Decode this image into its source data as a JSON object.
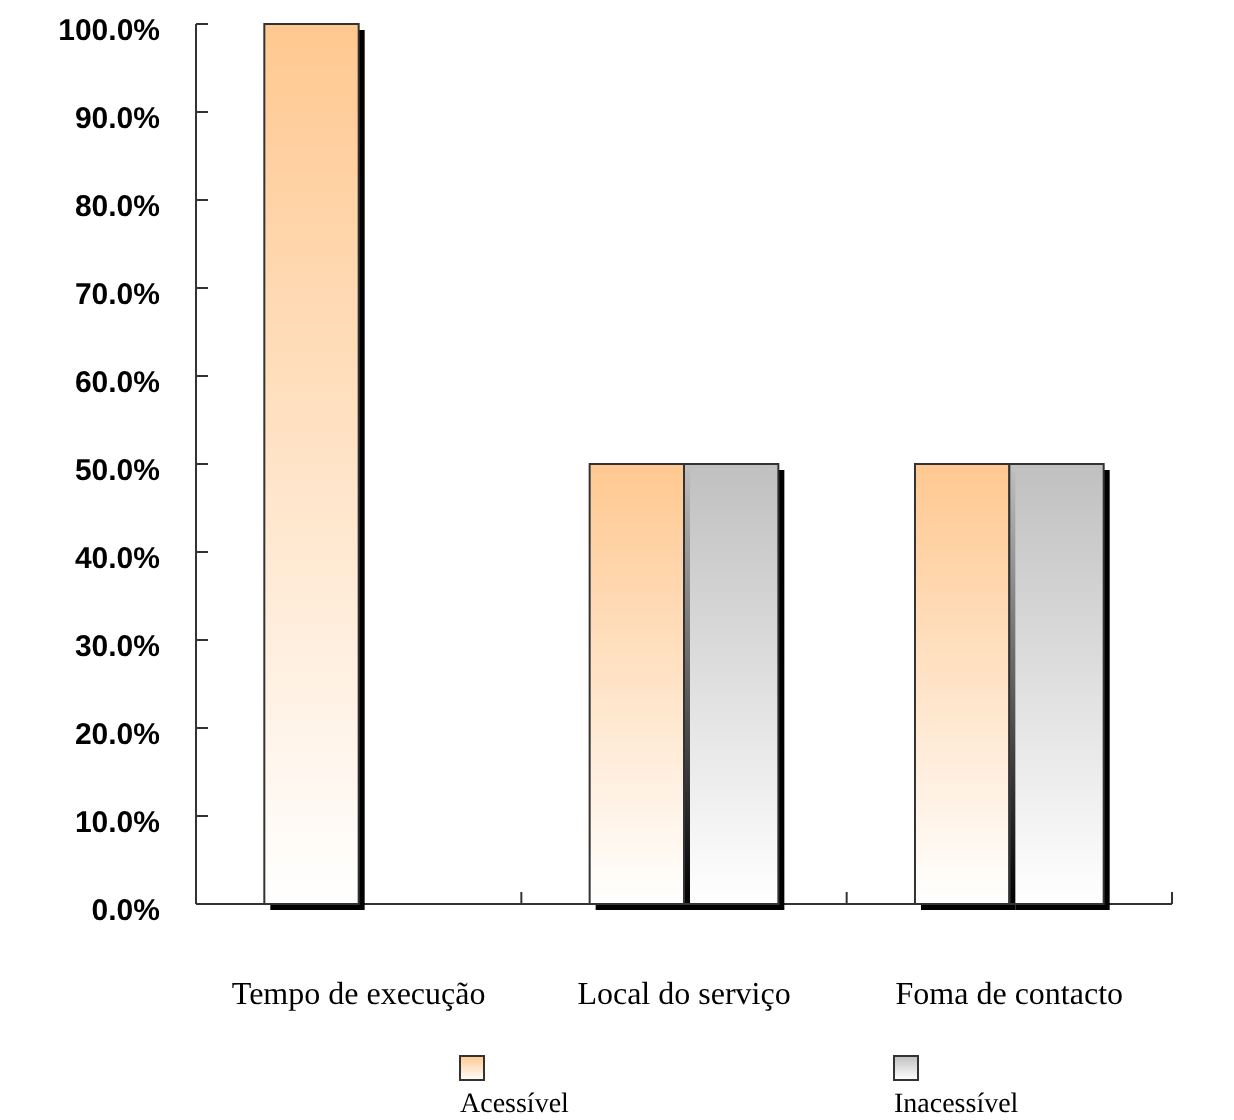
{
  "chart_data": {
    "type": "bar",
    "categories": [
      "Tempo de execução",
      "Local do serviço",
      "Foma de contacto"
    ],
    "series": [
      {
        "name": "Acessível",
        "color": "#ffc890",
        "values": [
          100,
          50,
          50
        ]
      },
      {
        "name": "Inacessível",
        "color": "#c0c0c0",
        "values": [
          0,
          50,
          50
        ]
      }
    ],
    "ylim": [
      0,
      100
    ],
    "yticks": [
      {
        "value": 0,
        "label": "0.0%"
      },
      {
        "value": 10,
        "label": "10.0%"
      },
      {
        "value": 20,
        "label": "20.0%"
      },
      {
        "value": 30,
        "label": "30.0%"
      },
      {
        "value": 40,
        "label": "40.0%"
      },
      {
        "value": 50,
        "label": "50.0%"
      },
      {
        "value": 60,
        "label": "60.0%"
      },
      {
        "value": 70,
        "label": "70.0%"
      },
      {
        "value": 80,
        "label": "80.0%"
      },
      {
        "value": 90,
        "label": "90.0%"
      },
      {
        "value": 100,
        "label": "100.0%"
      }
    ],
    "legend": "bottom"
  }
}
